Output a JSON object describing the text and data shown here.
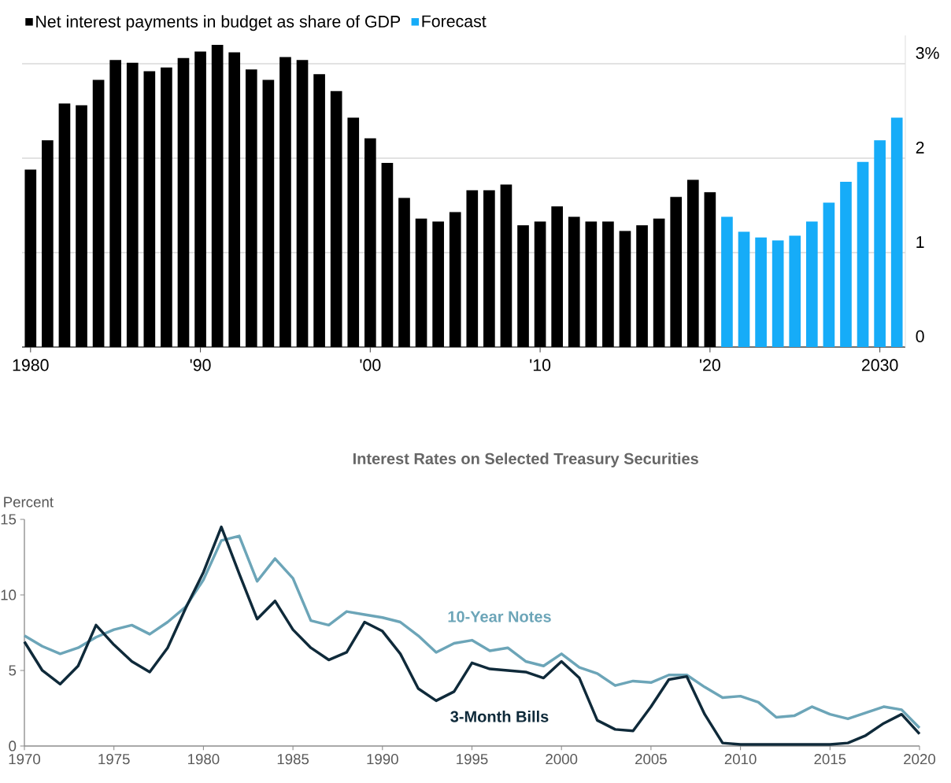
{
  "chart_data": [
    {
      "type": "bar",
      "legend": "top left",
      "grid": "y",
      "xlim": [
        1979.5,
        2031.5
      ],
      "ylim": [
        0,
        3.3
      ],
      "xticks": [
        {
          "value": 1980,
          "label": "1980"
        },
        {
          "value": 1990,
          "label": "'90"
        },
        {
          "value": 2000,
          "label": "'00"
        },
        {
          "value": 2010,
          "label": "'10"
        },
        {
          "value": 2020,
          "label": "'20"
        },
        {
          "value": 2030,
          "label": "2030"
        }
      ],
      "yticks": [
        0,
        1,
        2,
        {
          "value": 3,
          "label": "3%"
        }
      ],
      "series": [
        {
          "name": "Net interest payments in budget as share of GDP",
          "color": "#000000",
          "x": [
            1980,
            1981,
            1982,
            1983,
            1984,
            1985,
            1986,
            1987,
            1988,
            1989,
            1990,
            1991,
            1992,
            1993,
            1994,
            1995,
            1996,
            1997,
            1998,
            1999,
            2000,
            2001,
            2002,
            2003,
            2004,
            2005,
            2006,
            2007,
            2008,
            2009,
            2010,
            2011,
            2012,
            2013,
            2014,
            2015,
            2016,
            2017,
            2018,
            2019,
            2020
          ],
          "values": [
            1.88,
            2.19,
            2.58,
            2.56,
            2.83,
            3.04,
            3.01,
            2.92,
            2.96,
            3.06,
            3.13,
            3.2,
            3.12,
            2.94,
            2.83,
            3.07,
            3.04,
            2.89,
            2.71,
            2.43,
            2.21,
            1.95,
            1.58,
            1.36,
            1.33,
            1.43,
            1.66,
            1.66,
            1.72,
            1.29,
            1.33,
            1.49,
            1.38,
            1.33,
            1.33,
            1.23,
            1.29,
            1.36,
            1.59,
            1.77,
            1.64
          ]
        },
        {
          "name": "Forecast",
          "color": "#16acf8",
          "x": [
            2021,
            2022,
            2023,
            2024,
            2025,
            2026,
            2027,
            2028,
            2029,
            2030,
            2031
          ],
          "values": [
            1.38,
            1.22,
            1.16,
            1.13,
            1.18,
            1.33,
            1.53,
            1.75,
            1.96,
            2.19,
            2.43
          ]
        }
      ]
    },
    {
      "type": "line",
      "title": "Interest Rates on Selected Treasury Securities",
      "ylabel": "Percent",
      "xlim": [
        1970,
        2020
      ],
      "ylim": [
        0,
        15
      ],
      "xticks": [
        1970,
        1975,
        1980,
        1985,
        1990,
        1995,
        2000,
        2005,
        2010,
        2015,
        2020
      ],
      "yticks": [
        0,
        5,
        10,
        15
      ],
      "x": [
        1970,
        1971,
        1972,
        1973,
        1974,
        1975,
        1976,
        1977,
        1978,
        1979,
        1980,
        1981,
        1982,
        1983,
        1984,
        1985,
        1986,
        1987,
        1988,
        1989,
        1990,
        1991,
        1992,
        1993,
        1994,
        1995,
        1996,
        1997,
        1998,
        1999,
        2000,
        2001,
        2002,
        2003,
        2004,
        2005,
        2006,
        2007,
        2008,
        2009,
        2010,
        2011,
        2012,
        2013,
        2014,
        2015,
        2016,
        2017,
        2018,
        2019,
        2020
      ],
      "series": [
        {
          "name": "10-Year Notes",
          "color": "#6ca5b8",
          "values": [
            7.3,
            6.6,
            6.1,
            6.5,
            7.2,
            7.7,
            8.0,
            7.4,
            8.2,
            9.2,
            11.0,
            13.6,
            13.9,
            10.9,
            12.4,
            11.1,
            8.3,
            8.0,
            8.9,
            8.7,
            8.5,
            8.2,
            7.3,
            6.2,
            6.8,
            7.0,
            6.3,
            6.5,
            5.6,
            5.3,
            6.1,
            5.2,
            4.8,
            4.0,
            4.3,
            4.2,
            4.7,
            4.7,
            3.9,
            3.2,
            3.3,
            2.9,
            1.9,
            2.0,
            2.6,
            2.1,
            1.8,
            2.2,
            2.6,
            2.4,
            1.2
          ]
        },
        {
          "name": "3-Month Bills",
          "color": "#0f2a3a",
          "values": [
            6.9,
            5.0,
            4.1,
            5.3,
            8.0,
            6.7,
            5.6,
            4.9,
            6.5,
            9.1,
            11.5,
            14.5,
            11.4,
            8.4,
            9.6,
            7.7,
            6.5,
            5.7,
            6.2,
            8.2,
            7.6,
            6.1,
            3.8,
            3.0,
            3.6,
            5.5,
            5.1,
            5.0,
            4.9,
            4.5,
            5.6,
            4.5,
            1.7,
            1.1,
            1.0,
            2.6,
            4.4,
            4.6,
            2.1,
            0.2,
            0.1,
            0.1,
            0.1,
            0.1,
            0.1,
            0.1,
            0.2,
            0.7,
            1.5,
            2.1,
            0.8
          ]
        }
      ]
    }
  ]
}
